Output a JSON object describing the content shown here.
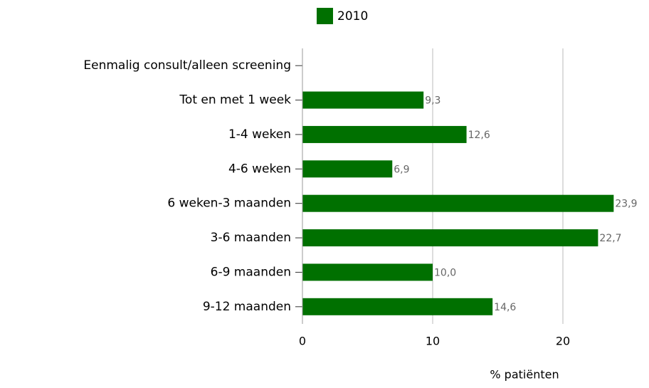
{
  "chart_data": {
    "type": "hbar",
    "categories": [
      "Eenmalig consult/alleen screening",
      "Tot en met 1 week",
      "1-4 weken",
      "4-6 weken",
      "6 weken-3 maanden",
      "3-6 maanden",
      "6-9 maanden",
      "9-12 maanden"
    ],
    "series": [
      {
        "name": "2010",
        "color": "#007000",
        "values": [
          null,
          9.3,
          12.6,
          6.9,
          23.9,
          22.7,
          10.0,
          14.6
        ],
        "value_labels": [
          null,
          "9,3",
          "12,6",
          "6,9",
          "23,9",
          "22,7",
          "10,0",
          "14,6"
        ]
      }
    ],
    "x_label": "% patiënten",
    "xlim": [
      0,
      25
    ],
    "xticks": [
      0,
      10,
      20
    ],
    "grid": true,
    "legend": "top"
  }
}
